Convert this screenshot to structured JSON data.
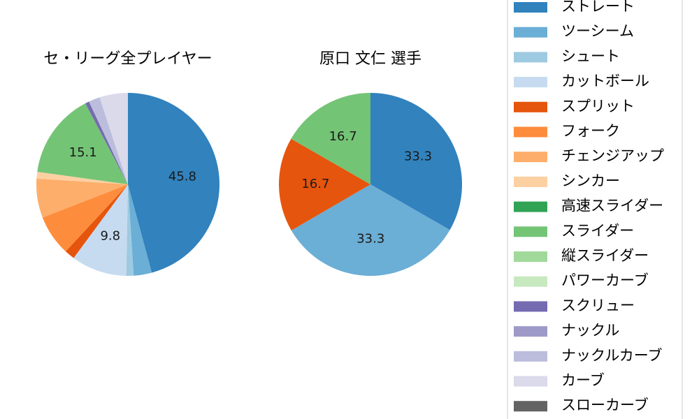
{
  "chart_data": [
    {
      "type": "pie",
      "title": "セ・リーグ全プレイヤー",
      "categories": [
        "ストレート",
        "ツーシーム",
        "シュート",
        "カットボール",
        "スプリット",
        "フォーク",
        "チェンジアップ",
        "シンカー",
        "スライダー",
        "スクリュー",
        "ナックルカーブ",
        "カーブ"
      ],
      "values": [
        45.8,
        3.2,
        1.3,
        9.8,
        1.8,
        7.2,
        6.9,
        1.2,
        15.1,
        0.7,
        2.0,
        5.0
      ],
      "colors": [
        "#3182bd",
        "#6baed6",
        "#9ecae1",
        "#c6dbef",
        "#e6550d",
        "#fd8d3c",
        "#fdae6b",
        "#fdd0a2",
        "#74c476",
        "#756bb1",
        "#bcbddc",
        "#dadaeb"
      ],
      "labels_shown": [
        "45.8",
        "",
        "",
        "9.8",
        "",
        "",
        "",
        "",
        "15.1",
        "",
        "",
        ""
      ],
      "start_angle_deg": 90,
      "direction": "clockwise"
    },
    {
      "type": "pie",
      "title": "原口 文仁  選手",
      "categories": [
        "ストレート",
        "ツーシーム",
        "スプリット",
        "スライダー"
      ],
      "values": [
        33.3,
        33.3,
        16.7,
        16.7
      ],
      "colors": [
        "#3182bd",
        "#6baed6",
        "#e6550d",
        "#74c476"
      ],
      "labels_shown": [
        "33.3",
        "33.3",
        "16.7",
        "16.7"
      ],
      "start_angle_deg": 90,
      "direction": "clockwise"
    }
  ],
  "legend": {
    "placement": "right",
    "items": [
      {
        "label": "ストレート",
        "color": "#3182bd"
      },
      {
        "label": "ツーシーム",
        "color": "#6baed6"
      },
      {
        "label": "シュート",
        "color": "#9ecae1"
      },
      {
        "label": "カットボール",
        "color": "#c6dbef"
      },
      {
        "label": "スプリット",
        "color": "#e6550d"
      },
      {
        "label": "フォーク",
        "color": "#fd8d3c"
      },
      {
        "label": "チェンジアップ",
        "color": "#fdae6b"
      },
      {
        "label": "シンカー",
        "color": "#fdd0a2"
      },
      {
        "label": "高速スライダー",
        "color": "#31a354"
      },
      {
        "label": "スライダー",
        "color": "#74c476"
      },
      {
        "label": "縦スライダー",
        "color": "#a1d99b"
      },
      {
        "label": "パワーカーブ",
        "color": "#c7e9c0"
      },
      {
        "label": "スクリュー",
        "color": "#756bb1"
      },
      {
        "label": "ナックル",
        "color": "#9e9ac8"
      },
      {
        "label": "ナックルカーブ",
        "color": "#bcbddc"
      },
      {
        "label": "カーブ",
        "color": "#dadaeb"
      },
      {
        "label": "スローカーブ",
        "color": "#636363"
      }
    ]
  }
}
